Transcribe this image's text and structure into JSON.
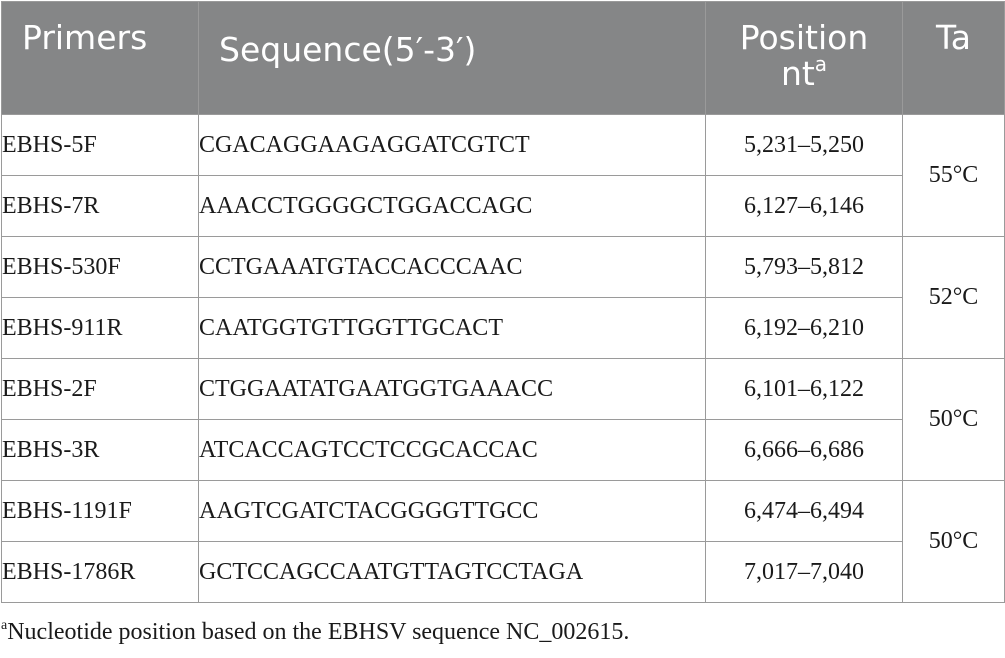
{
  "header": {
    "primers": "Primers",
    "sequence": "Sequence(5′-3′)",
    "position_line1": "Position",
    "position_line2": "nt",
    "position_sup": "a",
    "ta": "Ta"
  },
  "rows": [
    {
      "primer": "EBHS-5F",
      "sequence": "CGACAGGAAGAGGATCGTCT",
      "position": "5,231–5,250",
      "ta": "55°C"
    },
    {
      "primer": "EBHS-7R",
      "sequence": "AAACCTGGGGCTGGACCAGC",
      "position": "6,127–6,146",
      "ta": ""
    },
    {
      "primer": "EBHS-530F",
      "sequence": "CCTGAAATGTACCACCCAAC",
      "position": "5,793–5,812",
      "ta": "52°C"
    },
    {
      "primer": "EBHS-911R",
      "sequence": "CAATGGTGTTGGTTGCACT",
      "position": "6,192–6,210",
      "ta": ""
    },
    {
      "primer": "EBHS-2F",
      "sequence": "CTGGAATATGAATGGTGAAACC",
      "position": "6,101–6,122",
      "ta": "50°C"
    },
    {
      "primer": "EBHS-3R",
      "sequence": "ATCACCAGTCCTCCGCACCAC",
      "position": "6,666–6,686",
      "ta": ""
    },
    {
      "primer": "EBHS-1191F",
      "sequence": "AAGTCGATCTACGGGGTTGCC",
      "position": "6,474–6,494",
      "ta": "50°C"
    },
    {
      "primer": "EBHS-1786R",
      "sequence": "GCTCCAGCCAATGTTAGTCCTAGA",
      "position": "7,017–7,040",
      "ta": ""
    }
  ],
  "footnote": {
    "marker": "a",
    "text": "Nucleotide position based on the EBHSV sequence NC_002615."
  }
}
